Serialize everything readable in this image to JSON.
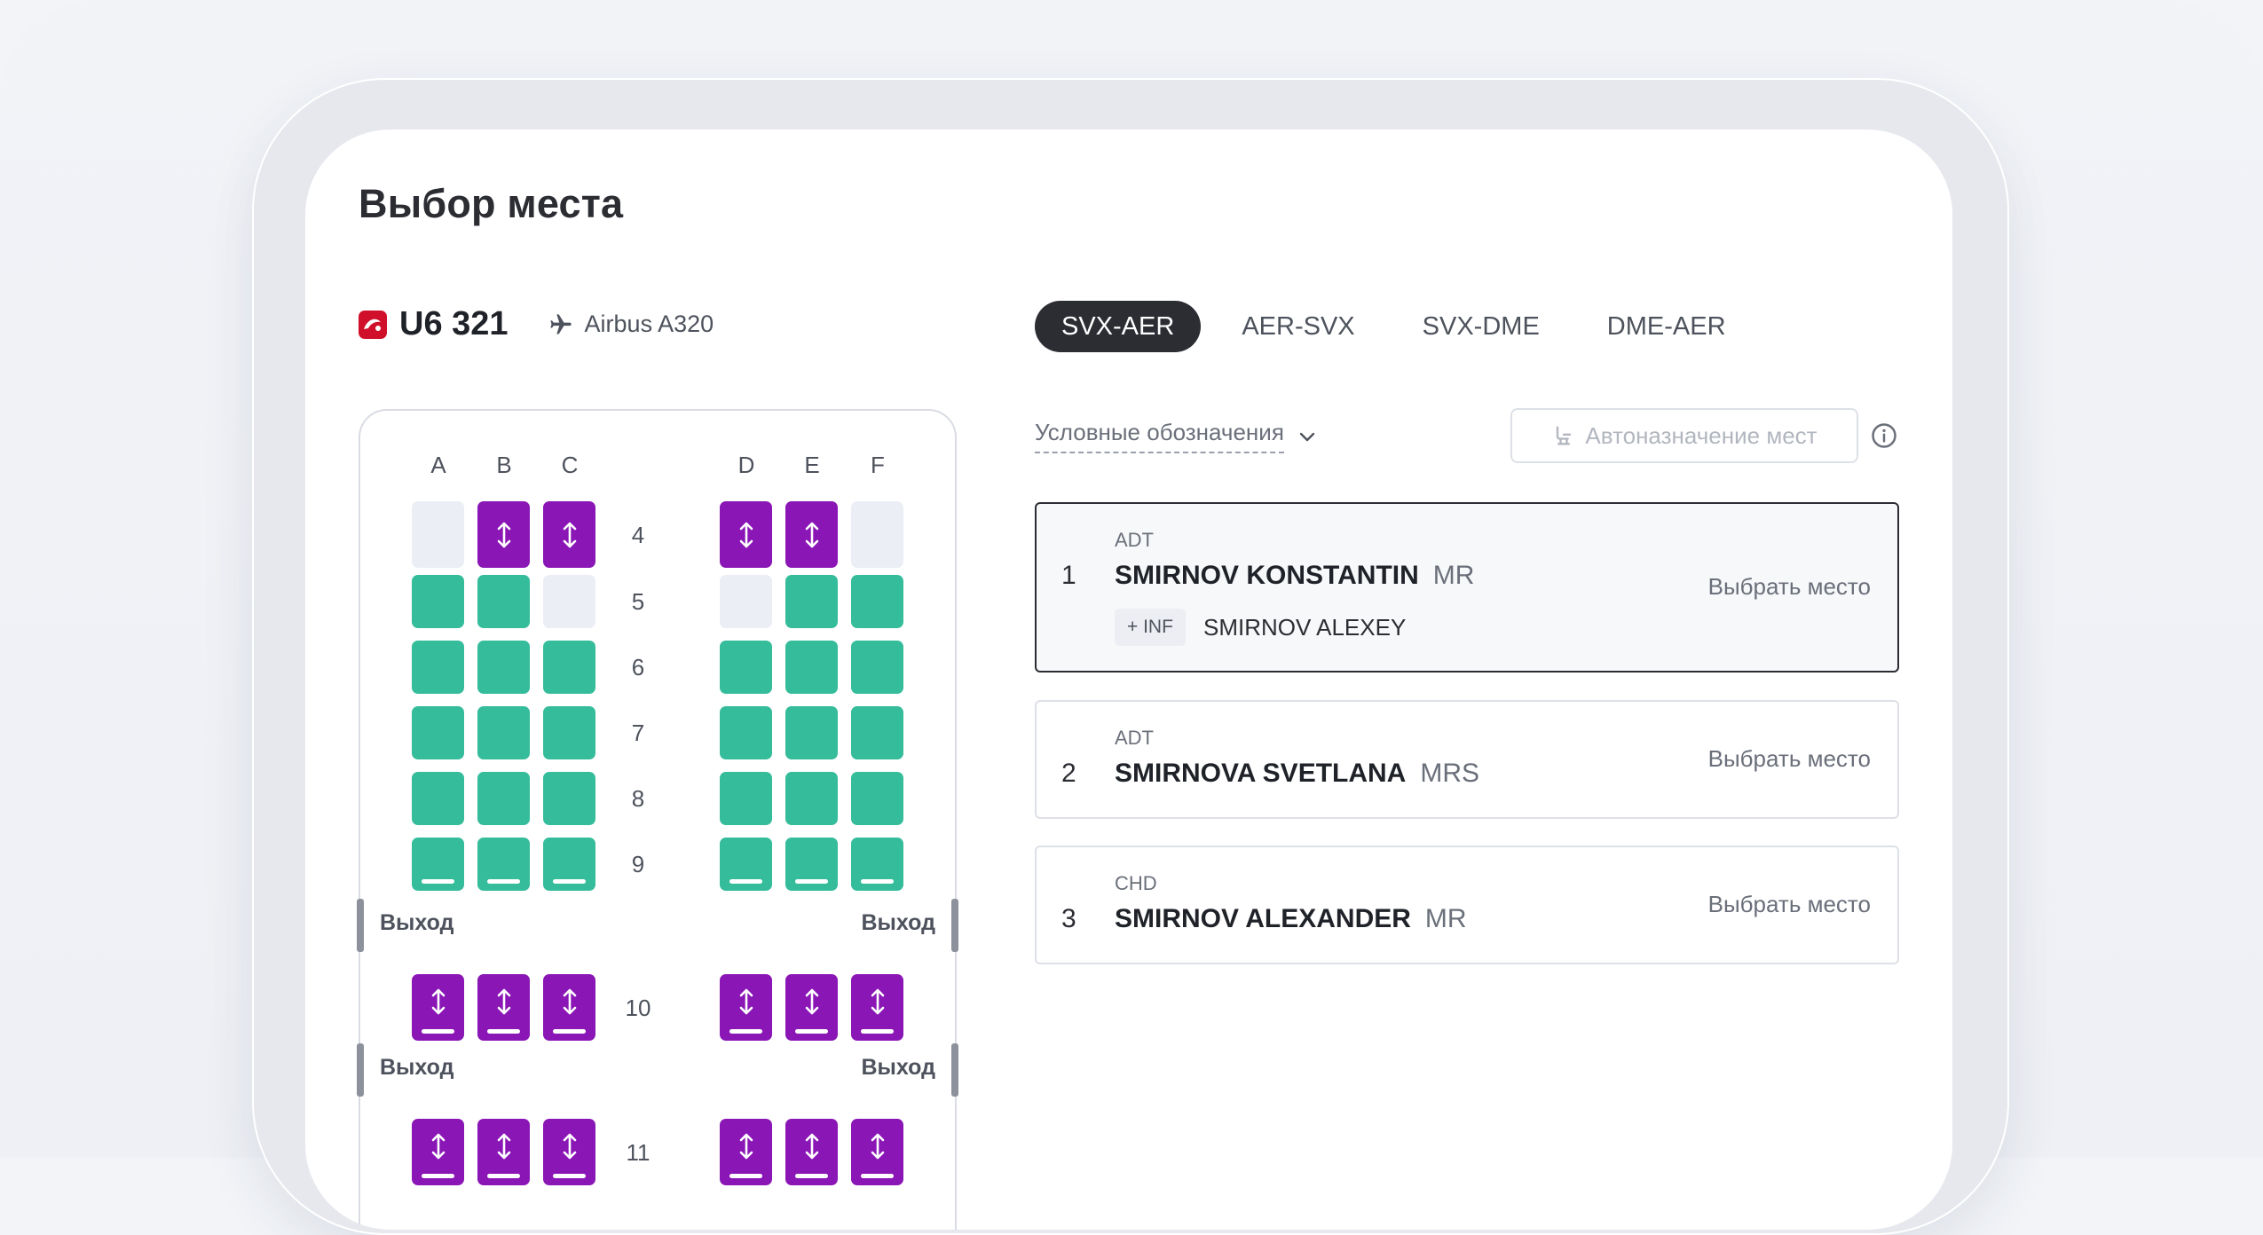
{
  "page": {
    "title": "Выбор места"
  },
  "flight": {
    "logo_icon": "s7-airline-logo",
    "number": "U6 321",
    "aircraft_icon": "plane-icon",
    "aircraft": "Airbus A320"
  },
  "routes": {
    "tabs": [
      "SVX-AER",
      "AER-SVX",
      "SVX-DME",
      "DME-AER"
    ],
    "active": "SVX-AER"
  },
  "legend": {
    "label": "Условные обозначения"
  },
  "auto_assign": {
    "label": "Автоназначение мест",
    "enabled": false
  },
  "seatmap": {
    "columns_left": [
      "A",
      "B",
      "C"
    ],
    "columns_right": [
      "D",
      "E",
      "F"
    ],
    "rows": [
      {
        "number": "4",
        "seats": [
          "na",
          "xl",
          "xl",
          "xl",
          "xl",
          "na"
        ]
      },
      {
        "number": "5",
        "seats": [
          "std",
          "std",
          "na",
          "na",
          "std",
          "std"
        ]
      },
      {
        "number": "6",
        "seats": [
          "std",
          "std",
          "std",
          "std",
          "std",
          "std"
        ]
      },
      {
        "number": "7",
        "seats": [
          "std",
          "std",
          "std",
          "std",
          "std",
          "std"
        ]
      },
      {
        "number": "8",
        "seats": [
          "std",
          "std",
          "std",
          "std",
          "std",
          "std"
        ]
      },
      {
        "number": "9",
        "seats": [
          "std",
          "std",
          "std",
          "std",
          "std",
          "std"
        ]
      },
      {
        "number": "10",
        "seats": [
          "xl",
          "xl",
          "xl",
          "xl",
          "xl",
          "xl"
        ]
      },
      {
        "number": "11",
        "seats": [
          "xl",
          "xl",
          "xl",
          "xl",
          "xl",
          "xl"
        ]
      }
    ],
    "exit_label": "Выход",
    "colors": {
      "standard": "#35bd9b",
      "extra_legroom": "#8a16b6",
      "unavailable": "#eceef5"
    }
  },
  "passengers": [
    {
      "index": "1",
      "type": "ADT",
      "name": "SMIRNOV KONSTANTIN",
      "title": "MR",
      "infant_badge": "+ INF",
      "infant_name": "SMIRNOV ALEXEY",
      "action": "Выбрать место",
      "selected": true
    },
    {
      "index": "2",
      "type": "ADT",
      "name": "SMIRNOVA SVETLANA",
      "title": "MRS",
      "action": "Выбрать место",
      "selected": false
    },
    {
      "index": "3",
      "type": "CHD",
      "name": "SMIRNOV ALEXANDER",
      "title": "MR",
      "action": "Выбрать место",
      "selected": false
    }
  ]
}
